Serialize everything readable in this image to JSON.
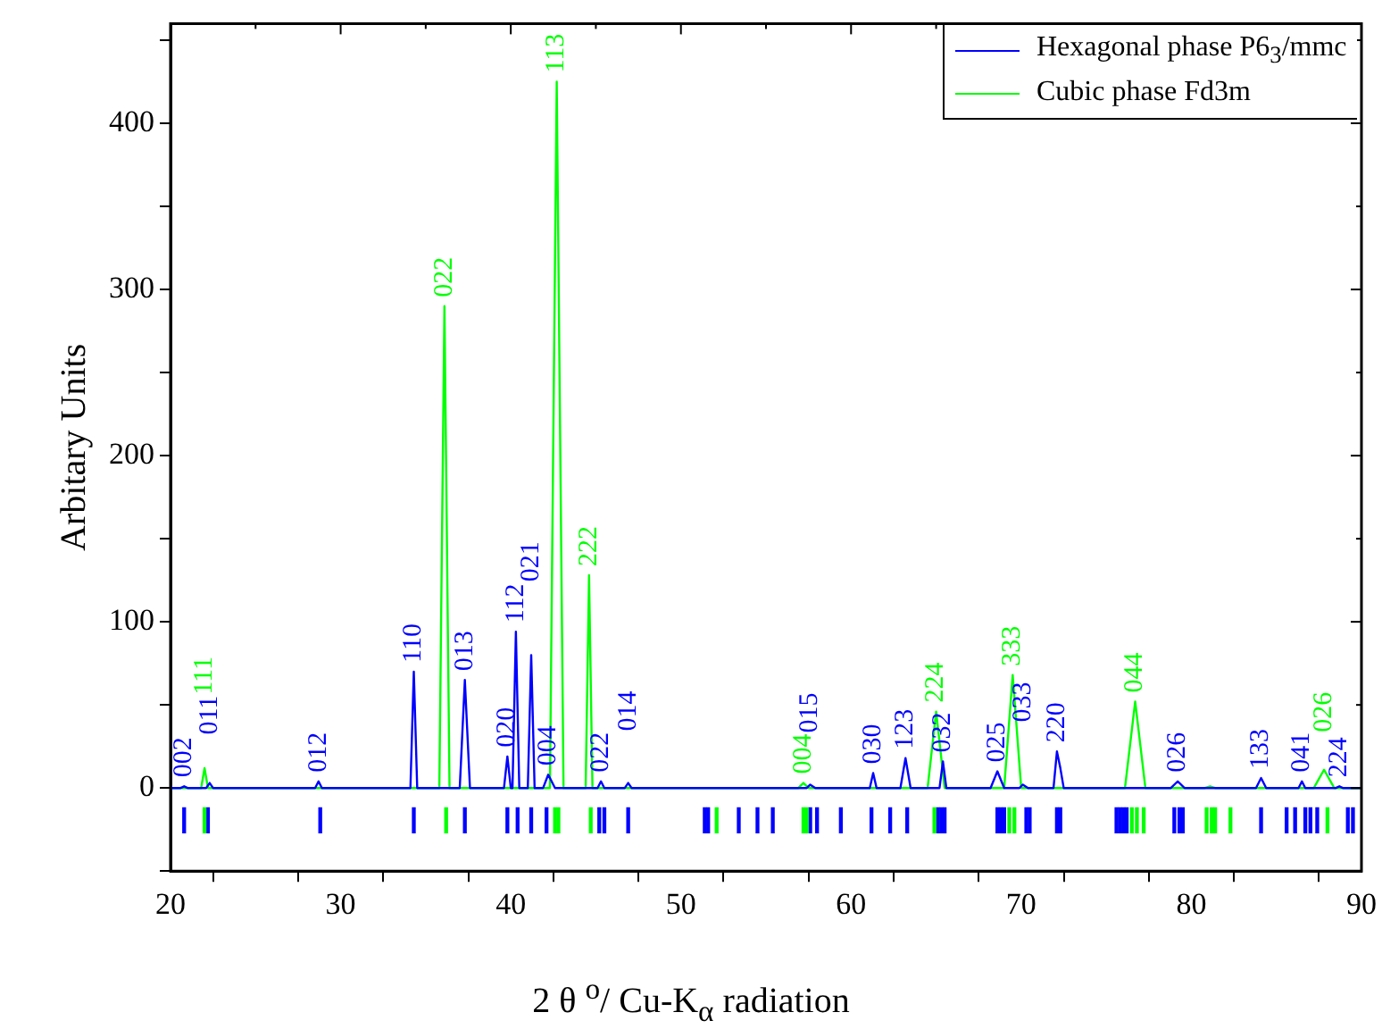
{
  "chart_data": {
    "type": "line",
    "xlabel": "2 θ $^{o}$/ Cu-K$_{α}$ radiation",
    "ylabel": "Arbitary Units",
    "xlim": [
      20,
      90
    ],
    "xticks": [
      20,
      {
        "value": 25,
        "label": null
      },
      30,
      {
        "value": 35,
        "label": null
      },
      40,
      {
        "value": 45,
        "label": null
      },
      50,
      {
        "value": 55,
        "label": null
      },
      60,
      {
        "value": 65,
        "label": null
      },
      70,
      {
        "value": 75,
        "label": null
      },
      80,
      {
        "value": 85,
        "label": null
      },
      90
    ],
    "ylim": [
      -50,
      460
    ],
    "yticks": [
      {
        "value": -50,
        "label": null
      },
      0,
      {
        "value": 50,
        "label": null
      },
      100,
      {
        "value": 150,
        "label": null
      },
      200,
      {
        "value": 250,
        "label": null
      },
      300,
      {
        "value": 350,
        "label": null
      },
      400,
      {
        "value": 450,
        "label": null
      }
    ],
    "legend": "top right",
    "marker": "none",
    "series": [
      {
        "name": "Hexagonal phase P6$_{3}$/mmc",
        "color": "#0000ff",
        "x": [
          20,
          20.6,
          20.8,
          21.0,
          22.1,
          22.3,
          22.5,
          28.5,
          28.7,
          28.9,
          34.1,
          34.3,
          34.5,
          37.0,
          37.3,
          37.6,
          39.6,
          39.8,
          40.0,
          40.1,
          40.3,
          40.5,
          41.0,
          41.2,
          41.4,
          41.9,
          42.2,
          42.6,
          45.1,
          45.3,
          45.5,
          46.7,
          46.9,
          47.1,
          57.4,
          57.6,
          57.9,
          61.1,
          61.3,
          61.5,
          62.9,
          63.2,
          63.5,
          65.2,
          65.4,
          65.6,
          68.2,
          68.6,
          69.0,
          69.9,
          70.1,
          70.4,
          71.9,
          72.1,
          72.3,
          72.5,
          78.8,
          79.2,
          79.6,
          83.8,
          84.1,
          84.4,
          86.3,
          86.5,
          86.7,
          88.5,
          88.7,
          88.9,
          90
        ],
        "values": [
          0,
          0,
          1,
          0,
          0,
          3,
          0,
          0,
          4,
          0,
          0,
          70,
          0,
          0,
          65,
          0,
          0,
          19,
          0,
          0,
          94,
          0,
          0,
          80,
          0,
          0,
          8,
          0,
          0,
          4,
          0,
          0,
          3,
          0,
          0,
          2,
          0,
          0,
          9,
          0,
          0,
          18,
          0,
          0,
          16,
          0,
          0,
          10,
          0,
          0,
          2,
          0,
          0,
          22,
          12,
          0,
          0,
          4,
          0,
          0,
          6,
          0,
          0,
          4,
          0,
          0,
          1,
          0,
          0
        ]
      },
      {
        "name": "Cubic phase Fd3m",
        "color": "#00ff00",
        "x": [
          20,
          21.8,
          22.0,
          22.2,
          35.8,
          36.1,
          36.4,
          42.3,
          42.7,
          43.1,
          44.4,
          44.6,
          44.8,
          56.9,
          57.2,
          57.5,
          64.5,
          65.0,
          65.5,
          69.0,
          69.5,
          70.0,
          76.1,
          76.7,
          77.3,
          80.8,
          81.1,
          81.4,
          87.2,
          87.8,
          88.4,
          90
        ],
        "values": [
          0,
          0,
          12,
          0,
          0,
          290,
          0,
          0,
          425,
          0,
          0,
          128,
          0,
          0,
          3,
          0,
          0,
          46,
          0,
          0,
          68,
          0,
          0,
          52,
          0,
          0,
          1,
          0,
          0,
          11,
          0,
          0
        ]
      },
      {
        "type": "bar",
        "color": "#0000ff",
        "x": [
          20.8,
          22.2,
          28.8,
          34.3,
          37.3,
          39.8,
          40.4,
          41.2,
          42.1,
          45.2,
          45.5,
          46.9,
          51.4,
          51.6,
          53.4,
          54.5,
          55.4,
          57.6,
          58.0,
          59.4,
          61.2,
          62.3,
          63.3,
          65.1,
          65.3,
          65.5,
          68.6,
          68.8,
          69.0,
          70.3,
          70.5,
          72.1,
          72.3,
          75.6,
          75.8,
          76.0,
          76.2,
          79.0,
          79.3,
          79.5,
          84.1,
          85.6,
          86.1,
          86.7,
          87.0,
          87.4,
          89.2,
          89.5
        ],
        "base": [
          -27,
          -27,
          -27,
          -27,
          -27,
          -27,
          -27,
          -27,
          -27,
          -27,
          -27,
          -27,
          -27,
          -27,
          -27,
          -27,
          -27,
          -27,
          -27,
          -27,
          -27,
          -27,
          -27,
          -27,
          -27,
          -27,
          -27,
          -27,
          -27,
          -27,
          -27,
          -27,
          -27,
          -27,
          -27,
          -27,
          -27,
          -27,
          -27,
          -27,
          -27,
          -27,
          -27,
          -27,
          -27,
          -27,
          -27,
          -27
        ],
        "values": [
          15,
          15,
          15,
          15,
          15,
          15,
          15,
          15,
          15,
          15,
          15,
          15,
          15,
          15,
          15,
          15,
          15,
          15,
          15,
          15,
          15,
          15,
          15,
          15,
          15,
          15,
          15,
          15,
          15,
          15,
          15,
          15,
          15,
          15,
          15,
          15,
          15,
          15,
          15,
          15,
          15,
          15,
          15,
          15,
          15,
          15,
          15,
          15
        ]
      },
      {
        "type": "bar",
        "color": "#00ff00",
        "x": [
          22.0,
          36.2,
          42.6,
          42.8,
          44.7,
          52.1,
          57.2,
          57.4,
          64.9,
          69.3,
          69.6,
          76.5,
          76.8,
          77.2,
          80.9,
          81.2,
          81.4,
          82.3,
          88.0
        ],
        "base": [
          -27,
          -27,
          -27,
          -27,
          -27,
          -27,
          -27,
          -27,
          -27,
          -27,
          -27,
          -27,
          -27,
          -27,
          -27,
          -27,
          -27,
          -27,
          -27
        ],
        "values": [
          15,
          15,
          15,
          15,
          15,
          15,
          15,
          15,
          15,
          15,
          15,
          15,
          15,
          15,
          15,
          15,
          15,
          15,
          15
        ]
      }
    ],
    "annotations": [
      {
        "text": "002",
        "x": 20.8,
        "y": 1
      },
      {
        "text": "011",
        "x": 22.3,
        "y": 3
      },
      {
        "text": "111",
        "x": 22.0,
        "y": 12
      },
      {
        "text": "012",
        "x": 28.7,
        "y": 4
      },
      {
        "text": "110",
        "x": 34.3,
        "y": 70
      },
      {
        "text": "022",
        "x": 36.1,
        "y": 290
      },
      {
        "text": "013",
        "x": 37.3,
        "y": 65
      },
      {
        "text": "020",
        "x": 39.8,
        "y": 19
      },
      {
        "text": "112",
        "x": 40.3,
        "y": 94
      },
      {
        "text": "021",
        "x": 41.2,
        "y": 80
      },
      {
        "text": "004",
        "x": 42.2,
        "y": 8
      },
      {
        "text": "113",
        "x": 42.7,
        "y": 425
      },
      {
        "text": "222",
        "x": 44.6,
        "y": 128
      },
      {
        "text": "022",
        "x": 45.3,
        "y": 4
      },
      {
        "text": "014",
        "x": 46.9,
        "y": 3
      },
      {
        "text": "004",
        "x": 57.2,
        "y": 3
      },
      {
        "text": "015",
        "x": 57.6,
        "y": 2
      },
      {
        "text": "030",
        "x": 61.3,
        "y": 9
      },
      {
        "text": "123",
        "x": 63.2,
        "y": 18
      },
      {
        "text": "224",
        "x": 65.0,
        "y": 46
      },
      {
        "text": "032",
        "x": 65.4,
        "y": 16
      },
      {
        "text": "025",
        "x": 68.6,
        "y": 10
      },
      {
        "text": "333",
        "x": 69.5,
        "y": 68
      },
      {
        "text": "033",
        "x": 70.1,
        "y": 2
      },
      {
        "text": "220",
        "x": 72.1,
        "y": 22
      },
      {
        "text": "044",
        "x": 76.7,
        "y": 52
      },
      {
        "text": "026",
        "x": 79.2,
        "y": 4
      },
      {
        "text": "133",
        "x": 84.1,
        "y": 6
      },
      {
        "text": "041",
        "x": 86.5,
        "y": 4
      },
      {
        "text": "026",
        "x": 87.8,
        "y": 11
      },
      {
        "text": "224",
        "x": 88.7,
        "y": 1
      }
    ]
  }
}
